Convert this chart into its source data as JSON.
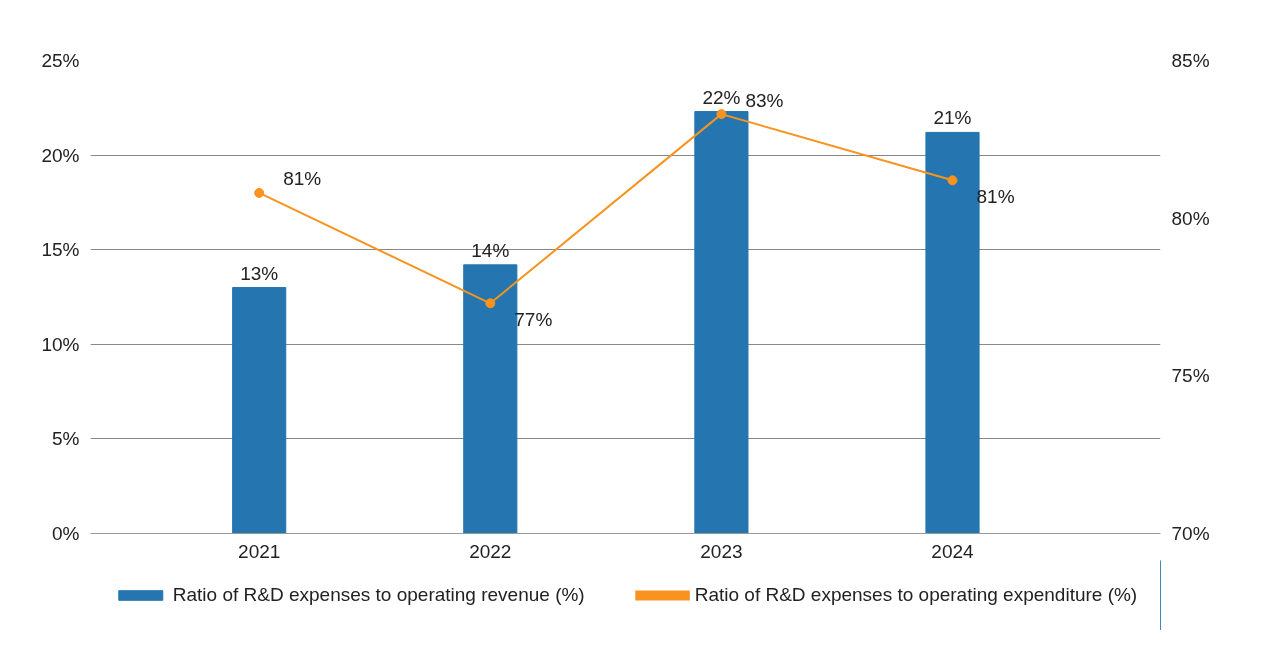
{
  "chart_data": {
    "type": "bar",
    "categories": [
      "2021",
      "2022",
      "2023",
      "2024"
    ],
    "series": [
      {
        "name": "Ratio of R&D expenses to operating revenue (%)",
        "color": "#2475b0",
        "values": [
          13.0,
          14.2,
          22.3,
          21.2
        ],
        "value_labels": [
          "13%",
          "14%",
          "22%",
          "21%"
        ]
      },
      {
        "name": "Ratio of R&D expenses to operating expenditure (%)",
        "type": "line",
        "axis": "y2",
        "color": "#f7931e",
        "marker": "circle",
        "values": [
          80.8,
          77.3,
          83.3,
          81.2
        ],
        "value_labels": [
          "81%",
          "77%",
          "83%",
          "81%"
        ]
      }
    ],
    "ylim": [
      0,
      25
    ],
    "yticks": [
      {
        "value": 0,
        "label": "0%"
      },
      {
        "value": 5,
        "label": "5%"
      },
      {
        "value": 10,
        "label": "10%"
      },
      {
        "value": 15,
        "label": "15%"
      },
      {
        "value": 20,
        "label": "20%"
      },
      {
        "value": 25,
        "label": "25%"
      }
    ],
    "y2lim": [
      70,
      85
    ],
    "y2ticks": [
      {
        "value": 70,
        "label": "70%"
      },
      {
        "value": 75,
        "label": "75%"
      },
      {
        "value": 80,
        "label": "80%"
      },
      {
        "value": 85,
        "label": "85%"
      }
    ],
    "grid": "y",
    "legend": "bottom"
  }
}
